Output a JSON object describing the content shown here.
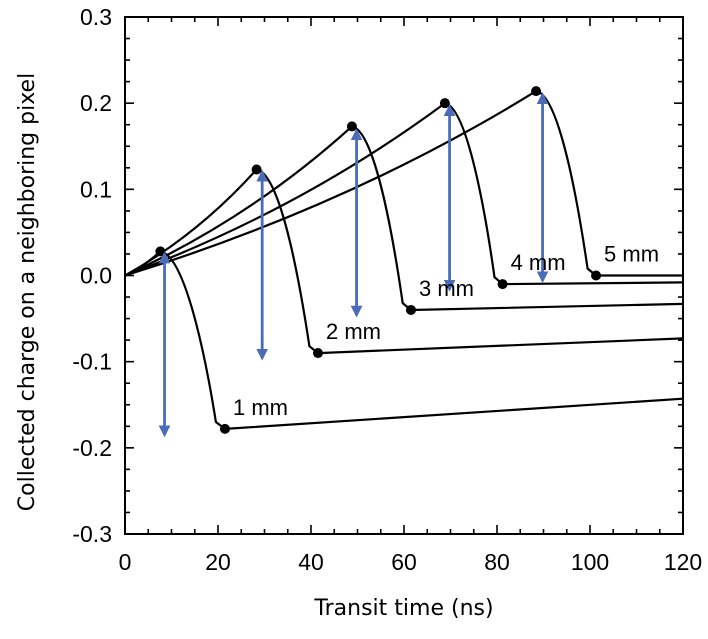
{
  "chart_data": {
    "type": "line",
    "xlabel": "Transit time (ns)",
    "ylabel": "Collected charge on a neighboring pixel",
    "xlim": [
      0,
      120
    ],
    "ylim": [
      -0.3,
      0.3
    ],
    "x_ticks": [
      0,
      20,
      40,
      60,
      80,
      100,
      120
    ],
    "y_ticks": [
      0.3,
      0.2,
      0.1,
      0.0,
      -0.1,
      -0.2,
      -0.3
    ],
    "x_tick_labels": [
      "0",
      "20",
      "40",
      "60",
      "80",
      "100",
      "120"
    ],
    "y_tick_labels": [
      "0.3",
      "0.2",
      "0.1",
      "0.0",
      "-0.1",
      "-0.2",
      "-0.3"
    ],
    "grid": false,
    "colors": {
      "curve": "#000000",
      "arrow": "#4a6cb8"
    },
    "series": [
      {
        "name": "1 mm",
        "peak": [
          7.6,
          0.028
        ],
        "trough": [
          21.5,
          -0.178
        ],
        "end": [
          120,
          -0.143
        ],
        "arrow": {
          "x": 8.5,
          "y_top": 0.025,
          "y_bottom": -0.185
        }
      },
      {
        "name": "2 mm",
        "peak": [
          28.3,
          0.123
        ],
        "trough": [
          41.5,
          -0.09
        ],
        "end": [
          120,
          -0.073
        ],
        "arrow": {
          "x": 29.5,
          "y_top": 0.12,
          "y_bottom": -0.096
        }
      },
      {
        "name": "3 mm",
        "peak": [
          48.8,
          0.173
        ],
        "trough": [
          61.5,
          -0.04
        ],
        "end": [
          120,
          -0.033
        ],
        "arrow": {
          "x": 49.8,
          "y_top": 0.168,
          "y_bottom": -0.046
        }
      },
      {
        "name": "4 mm",
        "peak": [
          68.8,
          0.2
        ],
        "trough": [
          81.2,
          -0.01
        ],
        "end": [
          120,
          -0.008
        ],
        "arrow": {
          "x": 69.8,
          "y_top": 0.196,
          "y_bottom": -0.016
        }
      },
      {
        "name": "5 mm",
        "peak": [
          88.4,
          0.214
        ],
        "trough": [
          101.3,
          0.0
        ],
        "end": [
          120,
          0.0
        ],
        "arrow": {
          "x": 89.8,
          "y_top": 0.21,
          "y_bottom": -0.006
        }
      }
    ]
  }
}
